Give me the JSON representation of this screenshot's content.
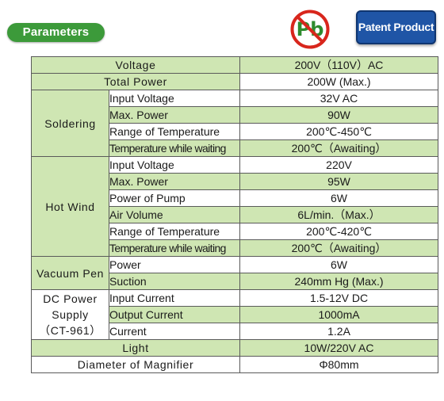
{
  "header": {
    "parameters_label": "Parameters",
    "pb_logo_text": "Pb",
    "patent_label": "Patent Product"
  },
  "table": {
    "voltage": {
      "label": "Voltage",
      "value": "200V（110V）AC"
    },
    "total_power": {
      "label": "Total Power",
      "value": "200W (Max.)"
    },
    "soldering": {
      "group": "Soldering",
      "rows": [
        {
          "label": "Input Voltage",
          "value": "32V AC"
        },
        {
          "label": "Max. Power",
          "value": "90W"
        },
        {
          "label": "Range of Temperature",
          "value": "200℃-450℃"
        },
        {
          "label": "Temperature while waiting",
          "value": "200℃（Awaiting）"
        }
      ]
    },
    "hot_wind": {
      "group": "Hot Wind",
      "rows": [
        {
          "label": "Input Voltage",
          "value": "220V"
        },
        {
          "label": "Max. Power",
          "value": "95W"
        },
        {
          "label": "Power of Pump",
          "value": "6W"
        },
        {
          "label": "Air Volume",
          "value": "6L/min.（Max.）"
        },
        {
          "label": "Range of Temperature",
          "value": "200℃-420℃"
        },
        {
          "label": "Temperature while waiting",
          "value": "200℃（Awaiting）"
        }
      ]
    },
    "vacuum_pen": {
      "group": "Vacuum Pen",
      "rows": [
        {
          "label": "Power",
          "value": "6W"
        },
        {
          "label": "Suction",
          "value": "240mm Hg (Max.)"
        }
      ]
    },
    "dc_power": {
      "group_line1": "DC Power",
      "group_line2": "Supply",
      "group_line3": "（CT-961）",
      "rows": [
        {
          "label": "Input Current",
          "value": "1.5-12V DC"
        },
        {
          "label": "Output Current",
          "value": "1000mA"
        },
        {
          "label": "Current",
          "value": "1.2A"
        }
      ]
    },
    "light": {
      "label": "Light",
      "value": "10W/220V AC"
    },
    "magnifier": {
      "label": "Diameter of Magnifier",
      "value": "Φ80mm"
    }
  }
}
